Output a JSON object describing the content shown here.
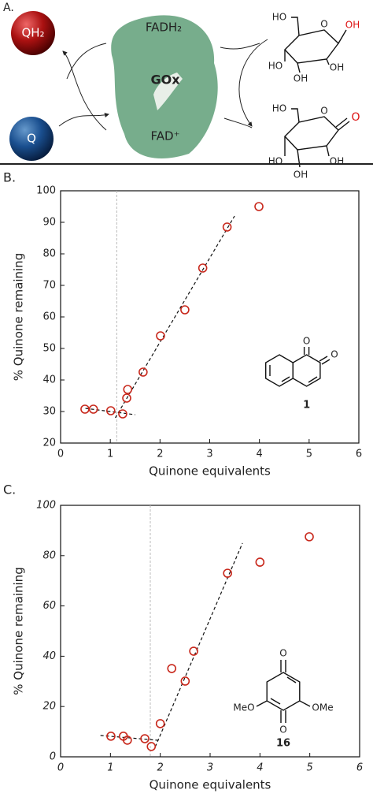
{
  "panel_a": {
    "panel_label": "A.",
    "qh2": "QH₂",
    "q": "Q",
    "fadh2": "FADH₂",
    "gox": "GOx",
    "fad": "FAD⁺",
    "glucose_labels": [
      "HO",
      "O",
      "OH",
      "HO",
      "OH",
      "OH"
    ],
    "lactone_labels": [
      "HO",
      "O",
      "O",
      "HO",
      "OH",
      "OH"
    ]
  },
  "chart_data": [
    {
      "type": "scatter",
      "panel_label": "B.",
      "xlabel": "Quinone equivalents",
      "ylabel": "% Quinone remaining",
      "x": [
        0.49,
        0.66,
        1.01,
        1.25,
        1.33,
        1.35,
        1.66,
        2.01,
        2.5,
        2.86,
        3.35,
        3.99
      ],
      "values": [
        30.75,
        30.75,
        30.25,
        29.25,
        34.25,
        37,
        42.5,
        54,
        62.25,
        75.5,
        88.5,
        95
      ],
      "color": "#c8281c",
      "fit_lines": [
        {
          "x": [
            0.5,
            1.5
          ],
          "y": [
            31,
            29
          ]
        },
        {
          "x": [
            1.1,
            3.5
          ],
          "y": [
            28,
            92
          ]
        }
      ],
      "vline_x": 1.13,
      "xlim": [
        0,
        6
      ],
      "ylim": [
        20,
        100
      ],
      "xticks": [
        0,
        1,
        2,
        3,
        4,
        5,
        6
      ],
      "yticks": [
        20,
        30,
        40,
        50,
        60,
        70,
        80,
        90,
        100
      ],
      "compound_label": "1",
      "structure_labels": [
        "O",
        "O"
      ]
    },
    {
      "type": "scatter",
      "panel_label": "C.",
      "xlabel": "Quinone equivalents",
      "ylabel": "% Quinone remaining",
      "x": [
        1.01,
        1.26,
        1.34,
        1.69,
        1.82,
        2.0,
        2.23,
        2.5,
        2.67,
        3.35,
        4.0,
        4.99
      ],
      "values": [
        8.2,
        8.2,
        6.6,
        7.2,
        4.1,
        13.2,
        35.1,
        30.1,
        42,
        73,
        77.4,
        87.5
      ],
      "color": "#c8281c",
      "fit_lines": [
        {
          "x": [
            0.8,
            2.0
          ],
          "y": [
            8.5,
            6.5
          ]
        },
        {
          "x": [
            1.9,
            3.65
          ],
          "y": [
            4,
            85
          ]
        }
      ],
      "vline_x": 1.8,
      "xlim": [
        0,
        6
      ],
      "ylim": [
        0,
        100
      ],
      "xticks": [
        0,
        1,
        2,
        3,
        4,
        5,
        6
      ],
      "yticks": [
        0,
        20,
        40,
        60,
        80,
        100
      ],
      "compound_label": "16",
      "structure_labels": [
        "O",
        "O",
        "MeO",
        "OMe"
      ]
    }
  ]
}
